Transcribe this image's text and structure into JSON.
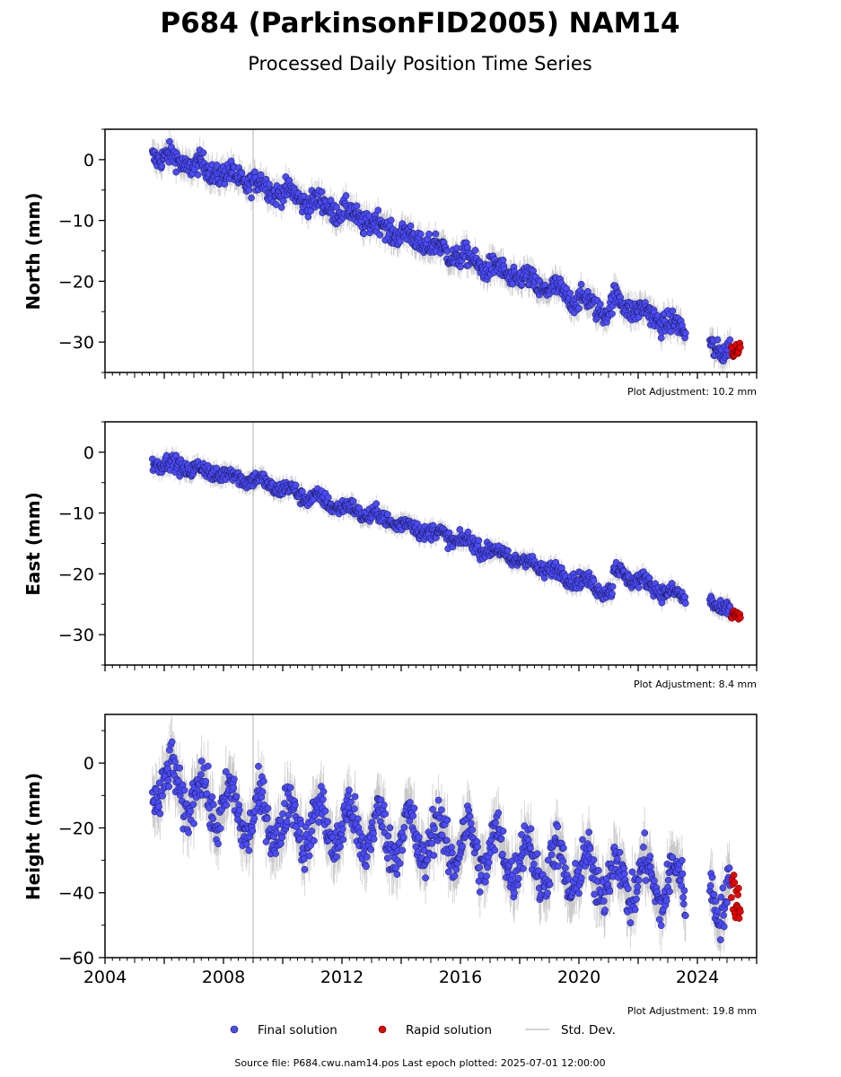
{
  "header": {
    "title": "P684 (ParkinsonFID2005) NAM14",
    "subtitle": "Processed Daily Position Time Series"
  },
  "legend": {
    "final": "Final solution",
    "rapid": "Rapid solution",
    "std": "Std. Dev."
  },
  "footer": {
    "source": "Source file: P684.cwu.nam14.pos  Last epoch plotted: 2025-07-01 12:00:00"
  },
  "colors": {
    "final": "#4b4bff",
    "rapid": "#e60000",
    "std": "#8c8c8c",
    "event_line": "#cccccc"
  },
  "chart_data": [
    {
      "type": "scatter",
      "ylabel": "North (mm)",
      "adjustment": "Plot Adjustment: 10.2 mm",
      "xlim": [
        2004,
        2026
      ],
      "ylim": [
        -35,
        5
      ],
      "yticks": [
        0,
        -10,
        -20,
        -30
      ],
      "yticklabels": [
        "0",
        "−10",
        "−20",
        "−30"
      ],
      "event_line_x": 2009.0,
      "final_trend": [
        [
          2005.6,
          1.0
        ],
        [
          2009.0,
          -3.8
        ],
        [
          2012.0,
          -8.5
        ],
        [
          2016.0,
          -16.0
        ],
        [
          2020.0,
          -23.0
        ],
        [
          2021.0,
          -25.0
        ],
        [
          2021.2,
          -23.0
        ],
        [
          2023.5,
          -28.0
        ],
        [
          2024.4,
          -30.5
        ],
        [
          2025.1,
          -31.5
        ]
      ],
      "final_gaps": [
        [
          2023.6,
          2024.4
        ]
      ],
      "final_scatter": 1.3,
      "seasonal_amp": 0.8,
      "rapid": {
        "x": [
          2025.15,
          2025.45
        ],
        "y_range": [
          -32.5,
          -30.0
        ]
      }
    },
    {
      "type": "scatter",
      "ylabel": "East (mm)",
      "adjustment": "Plot Adjustment: 8.4 mm",
      "xlim": [
        2004,
        2026
      ],
      "ylim": [
        -35,
        5
      ],
      "yticks": [
        0,
        -10,
        -20,
        -30
      ],
      "yticklabels": [
        "0",
        "−10",
        "−20",
        "−30"
      ],
      "event_line_x": 2009.0,
      "final_trend": [
        [
          2005.6,
          -1.5
        ],
        [
          2009.0,
          -4.5
        ],
        [
          2012.0,
          -9.0
        ],
        [
          2016.0,
          -14.5
        ],
        [
          2020.0,
          -21.0
        ],
        [
          2021.1,
          -23.0
        ],
        [
          2021.2,
          -19.5
        ],
        [
          2023.5,
          -24.0
        ],
        [
          2024.4,
          -24.5
        ],
        [
          2025.1,
          -26.0
        ]
      ],
      "final_gaps": [
        [
          2023.6,
          2024.4
        ]
      ],
      "final_scatter": 0.9,
      "seasonal_amp": 0.6,
      "rapid": {
        "x": [
          2025.15,
          2025.45
        ],
        "y_range": [
          -27.5,
          -26.0
        ]
      }
    },
    {
      "type": "scatter",
      "ylabel": "Height (mm)",
      "adjustment": "Plot Adjustment: 19.8 mm",
      "xlim": [
        2004,
        2026
      ],
      "ylim": [
        -60,
        15
      ],
      "yticks": [
        0,
        -20,
        -40,
        -60
      ],
      "yticklabels": [
        "0",
        "−20",
        "−40",
        "−60"
      ],
      "xticks": [
        2004,
        2008,
        2012,
        2016,
        2020,
        2024
      ],
      "xticklabels": [
        "2004",
        "2008",
        "2012",
        "2016",
        "2020",
        "2024"
      ],
      "event_line_x": 2009.0,
      "final_trend": [
        [
          2005.6,
          -5.0
        ],
        [
          2009.0,
          -17.0
        ],
        [
          2012.0,
          -20.0
        ],
        [
          2016.0,
          -25.0
        ],
        [
          2020.0,
          -34.0
        ],
        [
          2023.5,
          -38.0
        ],
        [
          2024.4,
          -40.0
        ],
        [
          2025.1,
          -40.0
        ]
      ],
      "final_gaps": [
        [
          2023.6,
          2024.4
        ]
      ],
      "final_scatter": 5.0,
      "seasonal_amp": 7.0,
      "rapid": {
        "x": [
          2025.15,
          2025.45
        ],
        "y_range": [
          -48.0,
          -34.0
        ]
      }
    }
  ]
}
